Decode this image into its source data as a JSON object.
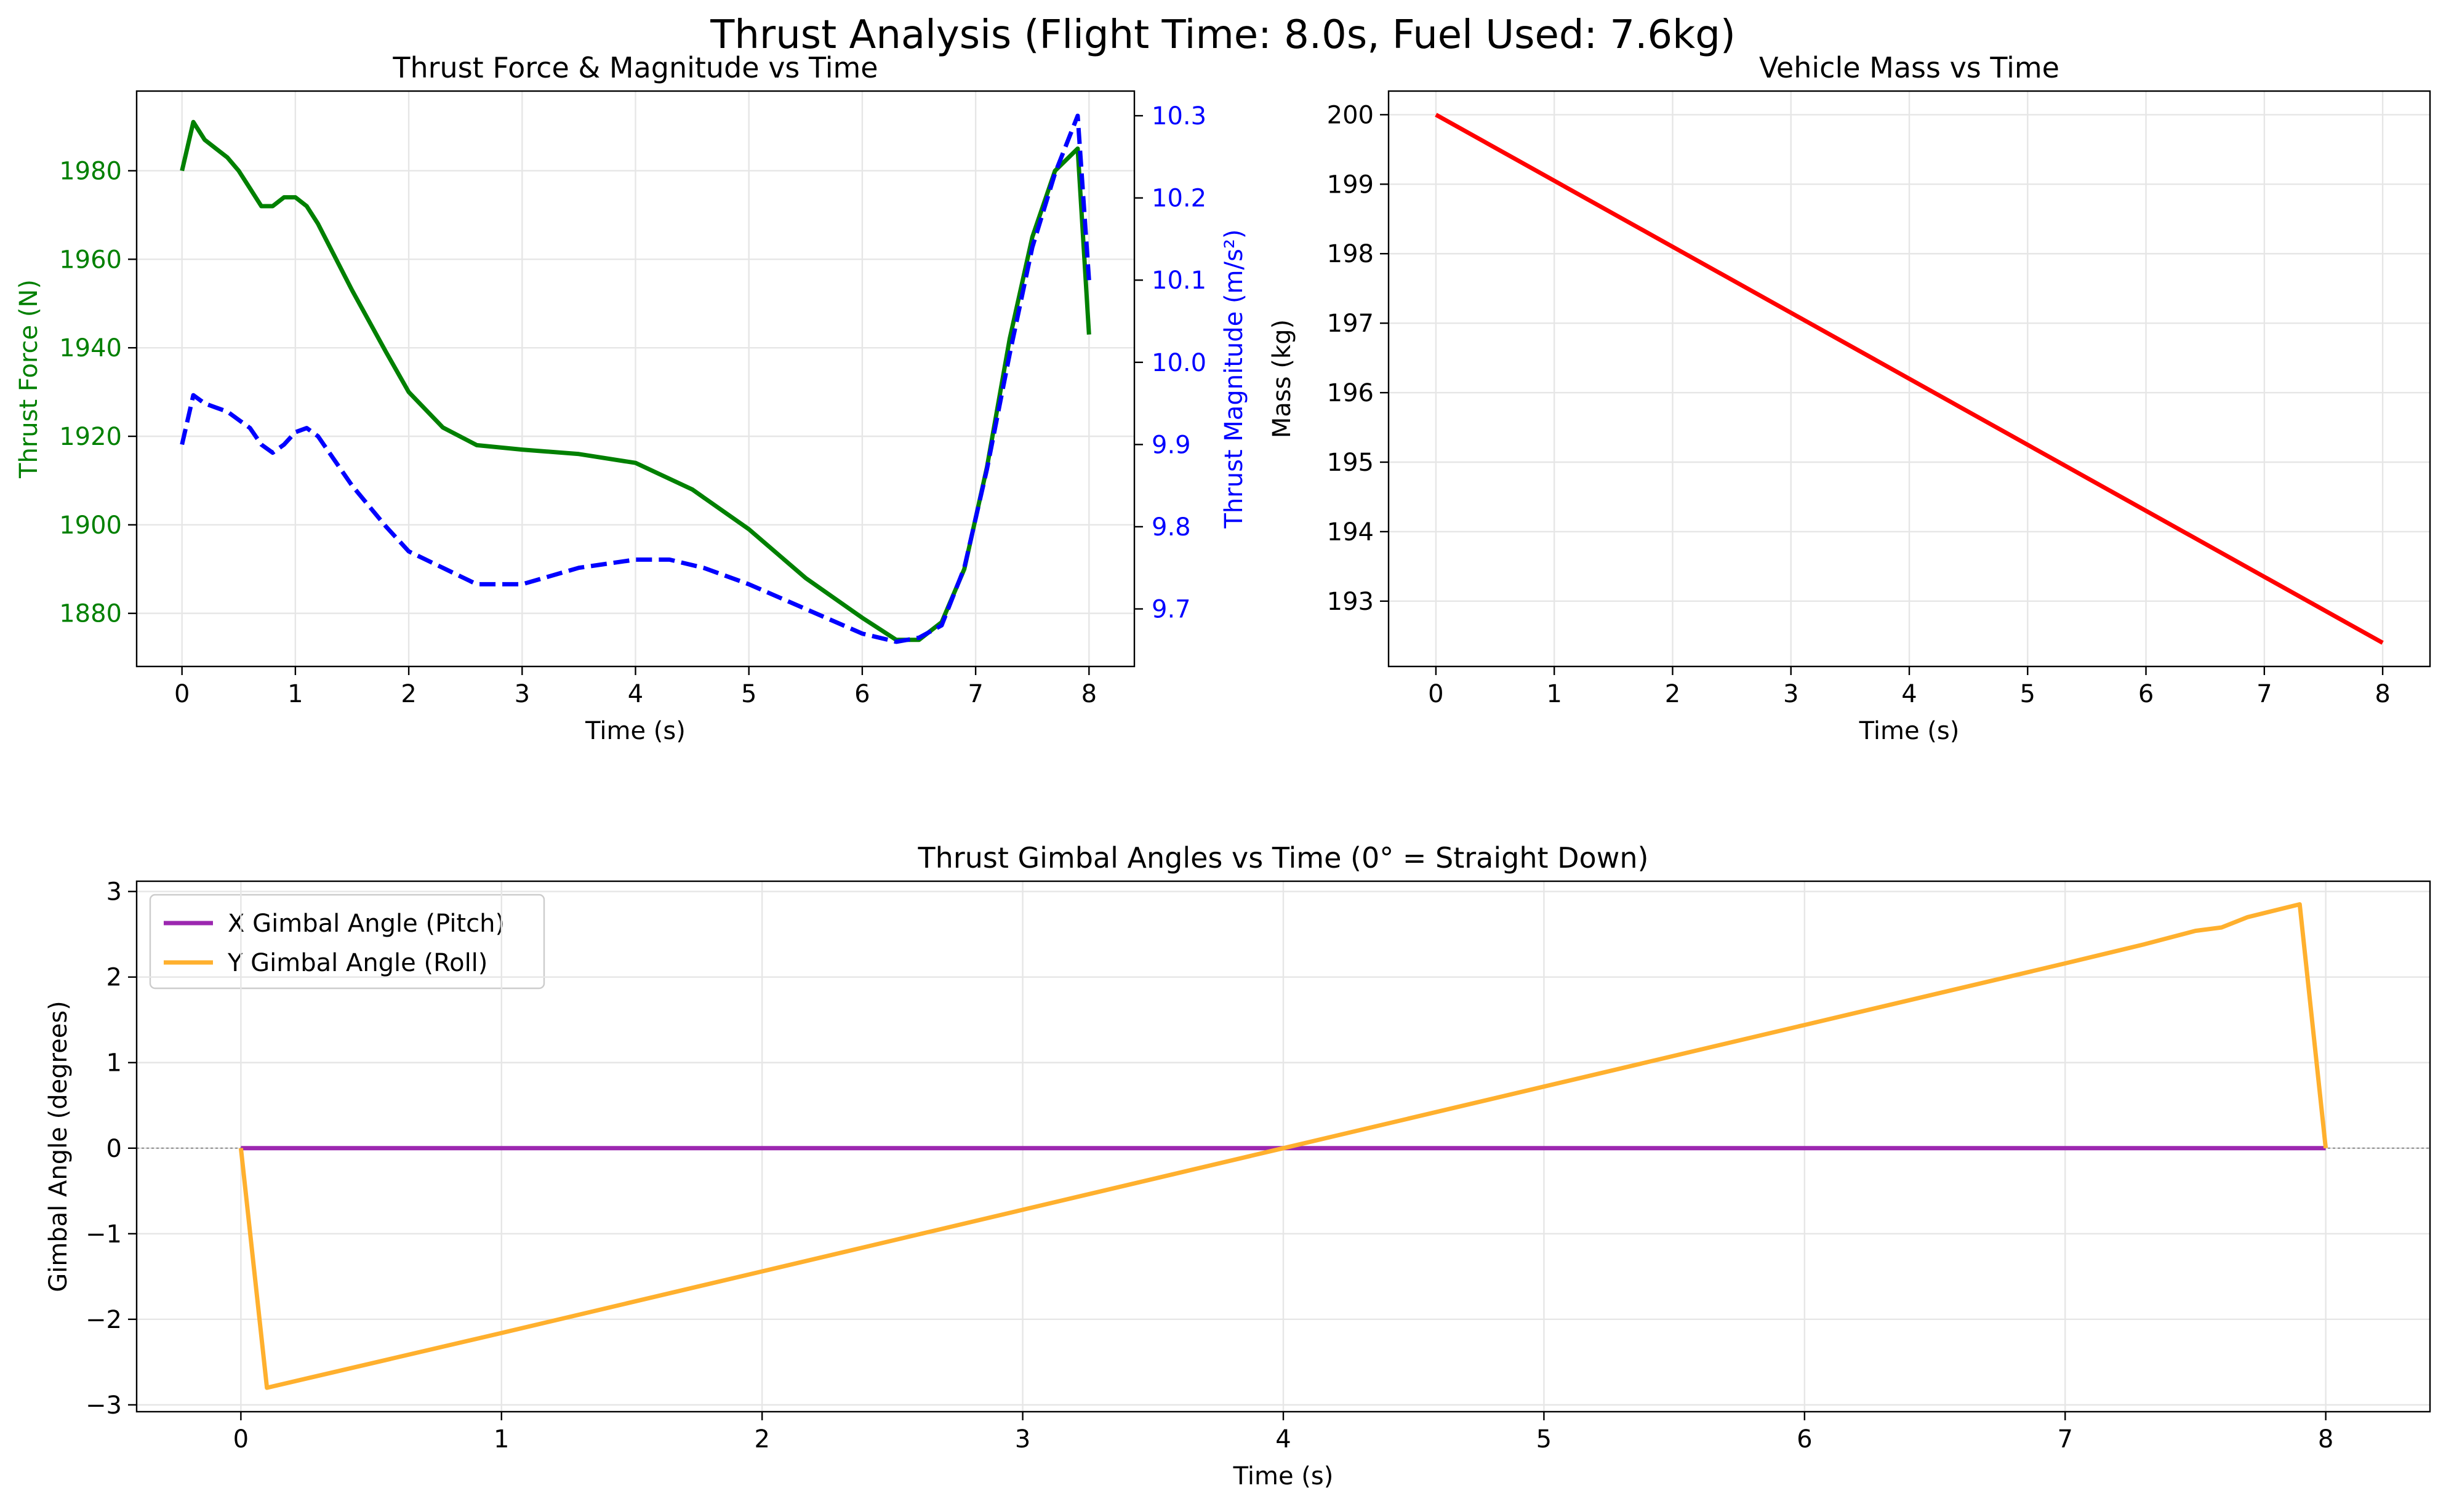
{
  "figure_title": "Thrust Analysis (Flight Time: 8.0s, Fuel Used: 7.6kg)",
  "colors": {
    "thrust_force": "#008000",
    "thrust_magnitude": "#0000ff",
    "mass": "#ff0000",
    "x_gimbal": "#9c27b0",
    "y_gimbal": "#ffb02e",
    "grid": "#e6e6e6",
    "zero_line": "#999999"
  },
  "chart_data": [
    {
      "type": "line",
      "title": "Thrust Force & Magnitude vs Time",
      "xlabel": "Time (s)",
      "ylabel": "Thrust Force (N)",
      "y2label": "Thrust Magnitude (m/s²)",
      "xlim": [
        -0.4,
        8.4
      ],
      "ylim": [
        1868,
        1998
      ],
      "y2lim": [
        9.63,
        10.33
      ],
      "xticks": [
        "0",
        "1",
        "2",
        "3",
        "4",
        "5",
        "6",
        "7",
        "8"
      ],
      "yticks": [
        "1880",
        "1900",
        "1920",
        "1940",
        "1960",
        "1980"
      ],
      "y2ticks": [
        "9.7",
        "9.8",
        "9.9",
        "10.0",
        "10.1",
        "10.2",
        "10.3"
      ],
      "grid": true,
      "series": [
        {
          "axis": "left",
          "style": "solid",
          "x": [
            0,
            0.1,
            0.2,
            0.3,
            0.4,
            0.5,
            0.6,
            0.7,
            0.8,
            0.9,
            1.0,
            1.1,
            1.2,
            1.3,
            1.5,
            1.8,
            2.0,
            2.3,
            2.6,
            3.0,
            3.5,
            4.0,
            4.5,
            5.0,
            5.5,
            6.0,
            6.3,
            6.5,
            6.7,
            6.9,
            7.1,
            7.3,
            7.5,
            7.7,
            7.9,
            8.0
          ],
          "y": [
            1980,
            1991,
            1987,
            1985,
            1983,
            1980,
            1976,
            1972,
            1972,
            1974,
            1974,
            1972,
            1968,
            1963,
            1953,
            1939,
            1930,
            1922,
            1918,
            1917,
            1916,
            1914,
            1908,
            1899,
            1888,
            1879,
            1874,
            1874,
            1878,
            1890,
            1913,
            1942,
            1965,
            1980,
            1985,
            1943
          ]
        },
        {
          "axis": "right",
          "style": "dashed",
          "x": [
            0,
            0.1,
            0.2,
            0.3,
            0.4,
            0.5,
            0.6,
            0.7,
            0.8,
            0.9,
            1.0,
            1.1,
            1.2,
            1.3,
            1.5,
            1.8,
            2.0,
            2.3,
            2.6,
            3.0,
            3.5,
            4.0,
            4.3,
            4.6,
            5.0,
            5.5,
            6.0,
            6.3,
            6.5,
            6.7,
            6.9,
            7.1,
            7.3,
            7.5,
            7.7,
            7.9,
            8.0
          ],
          "y": [
            9.9,
            9.96,
            9.95,
            9.945,
            9.94,
            9.93,
            9.92,
            9.9,
            9.89,
            9.9,
            9.915,
            9.92,
            9.91,
            9.89,
            9.85,
            9.8,
            9.77,
            9.75,
            9.73,
            9.73,
            9.75,
            9.76,
            9.76,
            9.75,
            9.73,
            9.7,
            9.67,
            9.66,
            9.665,
            9.68,
            9.75,
            9.87,
            10.01,
            10.14,
            10.23,
            10.3,
            10.1
          ]
        }
      ]
    },
    {
      "type": "line",
      "title": "Vehicle Mass vs Time",
      "xlabel": "Time (s)",
      "ylabel": "Mass (kg)",
      "xlim": [
        -0.4,
        8.4
      ],
      "ylim": [
        192.06,
        200.34
      ],
      "xticks": [
        "0",
        "1",
        "2",
        "3",
        "4",
        "5",
        "6",
        "7",
        "8"
      ],
      "yticks": [
        "193",
        "194",
        "195",
        "196",
        "197",
        "198",
        "199",
        "200"
      ],
      "grid": true,
      "series": [
        {
          "x": [
            0,
            8
          ],
          "y": [
            200,
            192.4
          ]
        }
      ]
    },
    {
      "type": "line",
      "title": "Thrust Gimbal Angles vs Time (0° = Straight Down)",
      "xlabel": "Time (s)",
      "ylabel": "Gimbal Angle (degrees)",
      "xlim": [
        -0.4,
        8.4
      ],
      "ylim": [
        -3.08,
        3.12
      ],
      "xticks": [
        "0",
        "1",
        "2",
        "3",
        "4",
        "5",
        "6",
        "7",
        "8"
      ],
      "yticks": [
        "−3",
        "−2",
        "−1",
        "0",
        "1",
        "2",
        "3"
      ],
      "grid": true,
      "legend": "top-left",
      "series": [
        {
          "name": "X Gimbal Angle (Pitch)",
          "x": [
            0,
            8
          ],
          "y": [
            0,
            0
          ]
        },
        {
          "name": "Y Gimbal Angle (Roll)",
          "x": [
            0,
            0.1,
            1,
            2,
            3,
            4,
            5,
            6,
            7,
            7.3,
            7.5,
            7.6,
            7.7,
            7.9,
            8.0
          ],
          "y": [
            0,
            -2.8,
            -2.16,
            -1.44,
            -0.72,
            0,
            0.72,
            1.44,
            2.16,
            2.38,
            2.54,
            2.58,
            2.7,
            2.85,
            0
          ]
        }
      ]
    }
  ]
}
